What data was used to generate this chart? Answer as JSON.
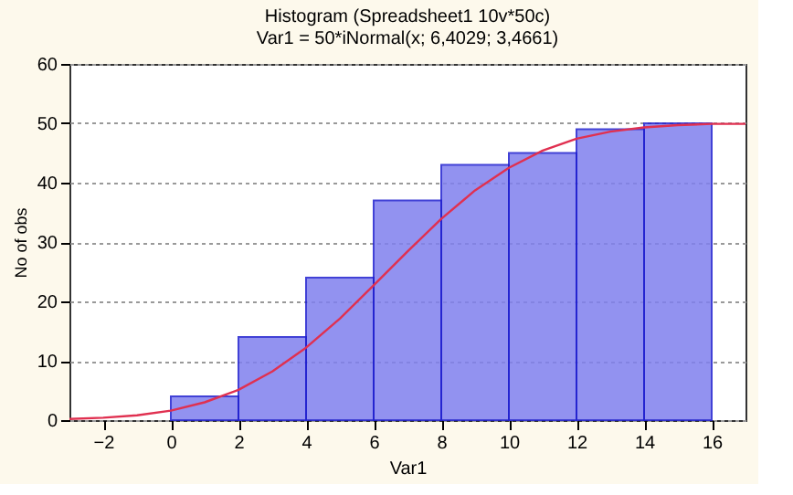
{
  "chart_data": {
    "type": "histogram",
    "title": "Histogram (Spreadsheet1 10v*50c)",
    "subtitle": "Var1 = 50*iNormal(x; 6,4029; 3,4661)",
    "xlabel": "Var1",
    "ylabel": "No of obs",
    "bins": [
      0,
      2,
      4,
      6,
      8,
      10,
      12,
      14,
      16
    ],
    "values": [
      4,
      14,
      24,
      37,
      43,
      45,
      49,
      50
    ],
    "color": "#8080ee",
    "series": [
      {
        "type": "line",
        "color": "#e03050",
        "x": [
          -3,
          -2,
          -1,
          0,
          1,
          2,
          3,
          4,
          5,
          6,
          7,
          8,
          9,
          10,
          11,
          12,
          13,
          14,
          15,
          16,
          17
        ],
        "values": [
          0.2,
          0.4,
          0.8,
          1.6,
          3.0,
          5.1,
          8.2,
          12.2,
          17.1,
          22.7,
          28.4,
          33.9,
          38.7,
          42.5,
          45.4,
          47.4,
          48.6,
          49.3,
          49.7,
          49.9,
          49.9
        ]
      }
    ],
    "xlim": [
      -3,
      17
    ],
    "xticks": [
      -2,
      0,
      2,
      4,
      6,
      8,
      10,
      12,
      14,
      16
    ],
    "ylim": [
      0,
      60
    ],
    "yticks": [
      0,
      10,
      20,
      30,
      40,
      50,
      60
    ],
    "grid": "y"
  }
}
